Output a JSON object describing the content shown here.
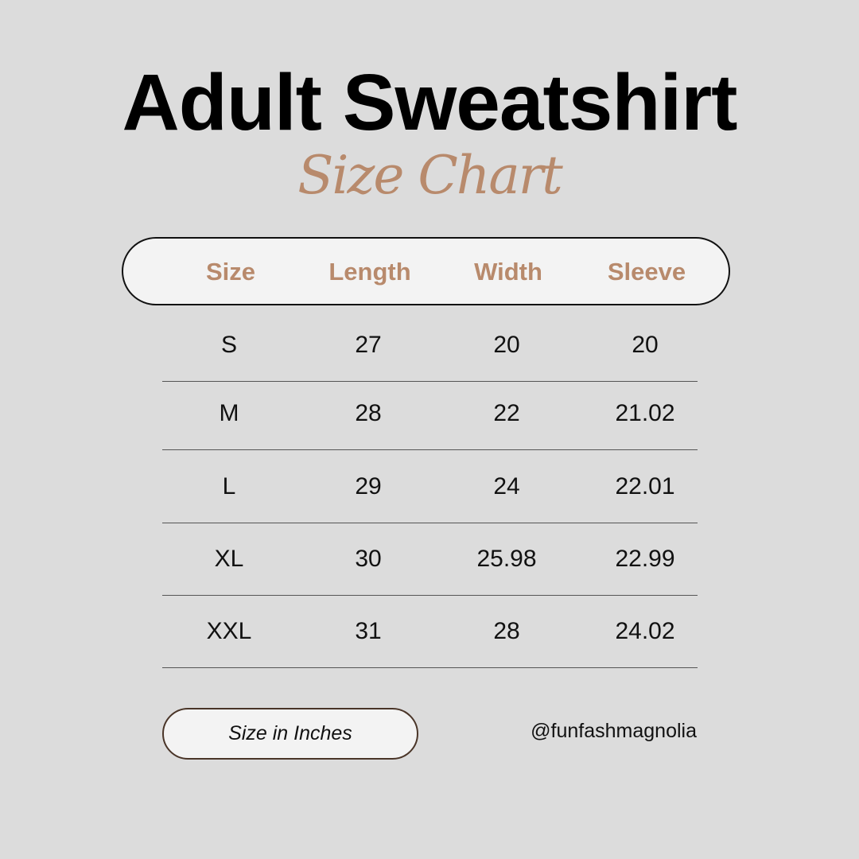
{
  "title": "Adult Sweatshirt",
  "subtitle": "Size Chart",
  "accent_color": "#b88a6c",
  "table": {
    "columns": [
      "Size",
      "Length",
      "Width",
      "Sleeve"
    ],
    "rows": [
      [
        "S",
        "27",
        "20",
        "20"
      ],
      [
        "M",
        "28",
        "22",
        "21.02"
      ],
      [
        "L",
        "29",
        "24",
        "22.01"
      ],
      [
        "XL",
        "30",
        "25.98",
        "22.99"
      ],
      [
        "XXL",
        "31",
        "28",
        "24.02"
      ]
    ]
  },
  "unit_note": "Size in Inches",
  "handle": "@funfashmagnolia"
}
